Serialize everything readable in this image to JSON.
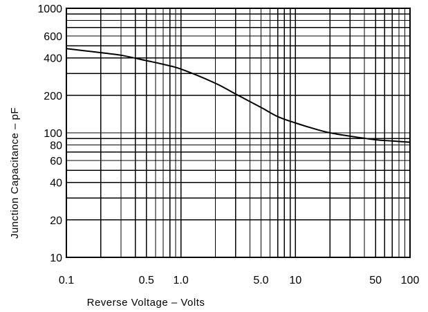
{
  "chart_data": {
    "type": "line",
    "xlabel": "Reverse Voltage  –  Volts",
    "ylabel": "Junction  Capacitance  –  pF",
    "x_scale": "log",
    "y_scale": "log",
    "xlim": [
      0.1,
      100
    ],
    "ylim": [
      10,
      1000
    ],
    "grid": true,
    "x_ticks": [
      {
        "value": 0.1,
        "label": "0.1"
      },
      {
        "value": 0.5,
        "label": "0.5"
      },
      {
        "value": 1,
        "label": "1.0"
      },
      {
        "value": 5,
        "label": "5.0"
      },
      {
        "value": 10,
        "label": "10"
      },
      {
        "value": 50,
        "label": "50"
      },
      {
        "value": 100,
        "label": "100"
      }
    ],
    "y_ticks": [
      {
        "value": 1000,
        "label": "1000"
      },
      {
        "value": 600,
        "label": "600"
      },
      {
        "value": 400,
        "label": "400"
      },
      {
        "value": 200,
        "label": "200"
      },
      {
        "value": 100,
        "label": "100"
      },
      {
        "value": 80,
        "label": "80"
      },
      {
        "value": 60,
        "label": "60"
      },
      {
        "value": 40,
        "label": "40"
      },
      {
        "value": 20,
        "label": "20"
      },
      {
        "value": 10,
        "label": "10"
      }
    ],
    "x_grid": [
      0.1,
      0.2,
      0.3,
      0.4,
      0.5,
      0.6,
      0.7,
      0.8,
      0.9,
      1,
      2,
      3,
      4,
      5,
      6,
      7,
      8,
      9,
      10,
      20,
      30,
      40,
      50,
      60,
      70,
      80,
      90,
      100
    ],
    "y_grid": [
      10,
      20,
      30,
      40,
      50,
      60,
      70,
      80,
      90,
      100,
      200,
      300,
      400,
      500,
      600,
      700,
      800,
      900,
      1000
    ],
    "series": [
      {
        "x": [
          0.1,
          0.2,
          0.3,
          0.5,
          0.7,
          1.0,
          2.0,
          3.0,
          5.0,
          7.0,
          10,
          15,
          20,
          30,
          50,
          70,
          100
        ],
        "y": [
          475,
          440,
          420,
          380,
          355,
          325,
          250,
          205,
          160,
          135,
          120,
          107,
          100,
          94,
          88,
          86,
          84
        ]
      }
    ]
  }
}
